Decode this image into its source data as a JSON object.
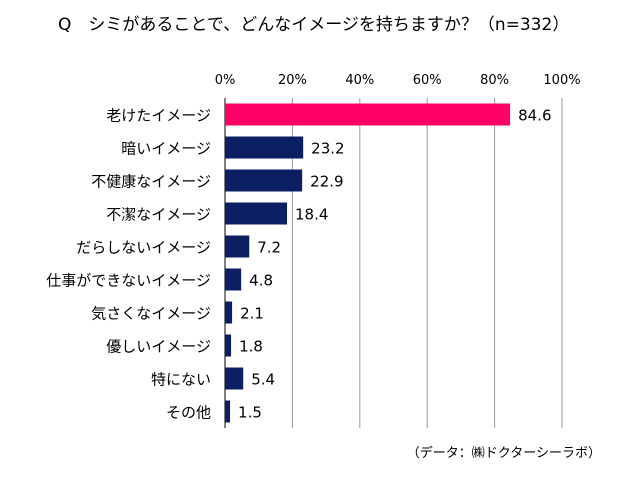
{
  "chart_data": {
    "type": "bar",
    "orientation": "horizontal",
    "title": "Q　シミがあることで、どんなイメージを持ちますか？（n=332）",
    "categories": [
      "老けたイメージ",
      "暗いイメージ",
      "不健康なイメージ",
      "不潔なイメージ",
      "だらしないイメージ",
      "仕事ができないイメージ",
      "気さくなイメージ",
      "優しいイメージ",
      "特にない",
      "その他"
    ],
    "values": [
      84.6,
      23.2,
      22.9,
      18.4,
      7.2,
      4.8,
      2.1,
      1.8,
      5.4,
      1.5
    ],
    "value_labels": [
      "84.6",
      "23.2",
      "22.9",
      "18.4",
      "7.2",
      "4.8",
      "2.1",
      "1.8",
      "5.4",
      "1.5"
    ],
    "xlim": [
      0,
      100
    ],
    "x_ticks": [
      "0%",
      "20%",
      "40%",
      "60%",
      "80%",
      "100%"
    ],
    "x_tick_values": [
      0,
      20,
      40,
      60,
      80,
      100
    ],
    "grid": true,
    "axis_position": "top",
    "colors": {
      "highlight": "#ff0066",
      "default": "#0c1f63",
      "grid": "#999999"
    },
    "highlight_index": 0,
    "source": "（データ：㈱ドクターシーラボ）"
  }
}
